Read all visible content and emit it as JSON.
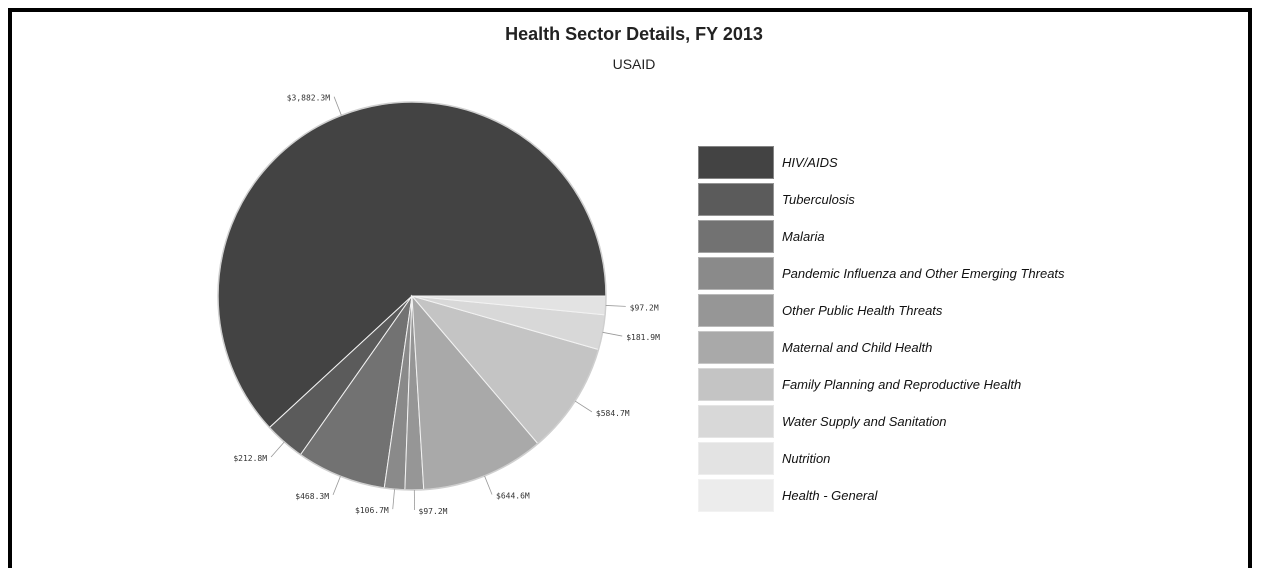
{
  "chart_data": {
    "type": "pie",
    "title": "Health Sector Details, FY 2013",
    "subtitle": "USAID",
    "slices": [
      {
        "label": "HIV/AIDS",
        "value": 3882.3,
        "value_label": "$3,882.3M",
        "color": "#434343"
      },
      {
        "label": "Tuberculosis",
        "value": 212.8,
        "value_label": "$212.8M",
        "color": "#5b5b5b"
      },
      {
        "label": "Malaria",
        "value": 468.3,
        "value_label": "$468.3M",
        "color": "#727272"
      },
      {
        "label": "Pandemic Influenza and Other Emerging Threats",
        "value": 106.7,
        "value_label": "$106.7M",
        "color": "#8a8a8a"
      },
      {
        "label": "Other Public Health Threats",
        "value": 97.2,
        "value_label": "$97.2M",
        "color": "#969696"
      },
      {
        "label": "Maternal and Child Health",
        "value": 644.6,
        "value_label": "$644.6M",
        "color": "#a9a9a9"
      },
      {
        "label": "Family Planning and Reproductive Health",
        "value": 584.7,
        "value_label": "$584.7M",
        "color": "#c4c4c4"
      },
      {
        "label": "Water Supply and Sanitation",
        "value": 181.9,
        "value_label": "$181.9M",
        "color": "#d8d8d8"
      },
      {
        "label": "Nutrition",
        "value": 97.2,
        "value_label": "$97.2M",
        "color": "#e3e3e3"
      },
      {
        "label": "Health - General",
        "value": 0,
        "value_label": "",
        "color": "#ececec"
      }
    ],
    "legend_position": "right"
  }
}
